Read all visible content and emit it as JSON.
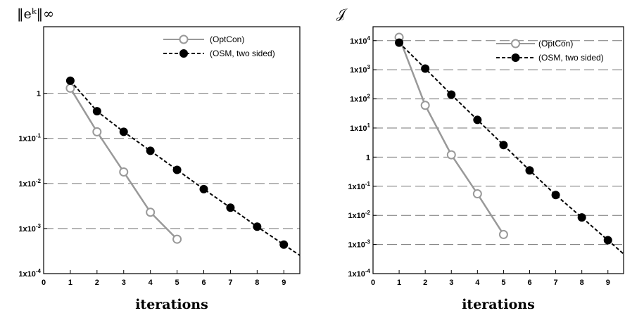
{
  "chart_data": [
    {
      "type": "line",
      "ylabel": "‖eᵏ‖∞",
      "xlabel": "iterations",
      "yscale": "log",
      "xlim": [
        0,
        9.6
      ],
      "ylim": [
        0.0001,
        30
      ],
      "x_ticks": [
        "0",
        "1",
        "2",
        "3",
        "4",
        "5",
        "6",
        "7",
        "8",
        "9"
      ],
      "y_ticks": [
        {
          "value": 1,
          "base": "1",
          "exp": ""
        },
        {
          "value": 0.1,
          "base": "1x10",
          "exp": "-1"
        },
        {
          "value": 0.01,
          "base": "1x10",
          "exp": "-2"
        },
        {
          "value": 0.001,
          "base": "1x10",
          "exp": "-3"
        },
        {
          "value": 0.0001,
          "base": "1x10",
          "exp": "-4"
        }
      ],
      "grid": "horizontal dashed",
      "legend_position": "top-right",
      "series": [
        {
          "name": "(OptCon)",
          "style": "solid",
          "marker": "open-circle",
          "color": "#999999",
          "x": [
            1,
            2,
            3,
            4,
            5
          ],
          "y": [
            1.3,
            0.14,
            0.018,
            0.0023,
            0.00058
          ]
        },
        {
          "name": "(OSM, two sided)",
          "style": "dashed",
          "marker": "filled-circle",
          "color": "#000000",
          "x": [
            1,
            2,
            3,
            4,
            5,
            6,
            7,
            8,
            9
          ],
          "y": [
            1.9,
            0.4,
            0.14,
            0.053,
            0.02,
            0.0075,
            0.0029,
            0.0011,
            0.00044
          ],
          "line_extends_to_x": 9.6
        }
      ]
    },
    {
      "type": "line",
      "ylabel": "𝒥",
      "xlabel": "iterations",
      "yscale": "log",
      "xlim": [
        0,
        9.6
      ],
      "ylim": [
        0.0001,
        30000
      ],
      "x_ticks": [
        "0",
        "1",
        "2",
        "3",
        "4",
        "5",
        "6",
        "7",
        "8",
        "9"
      ],
      "y_ticks": [
        {
          "value": 10000,
          "base": "1x10",
          "exp": "4"
        },
        {
          "value": 1000,
          "base": "1x10",
          "exp": "3"
        },
        {
          "value": 100,
          "base": "1x10",
          "exp": "2"
        },
        {
          "value": 10,
          "base": "1x10",
          "exp": "1"
        },
        {
          "value": 1,
          "base": "1",
          "exp": ""
        },
        {
          "value": 0.1,
          "base": "1x10",
          "exp": "-1"
        },
        {
          "value": 0.01,
          "base": "1x10",
          "exp": "-2"
        },
        {
          "value": 0.001,
          "base": "1x10",
          "exp": "-3"
        },
        {
          "value": 0.0001,
          "base": "1x10",
          "exp": "-4"
        }
      ],
      "grid": "horizontal dashed",
      "legend_position": "top-right",
      "series": [
        {
          "name": "(OptCon)",
          "style": "solid",
          "marker": "open-circle",
          "color": "#999999",
          "x": [
            1,
            2,
            3,
            4,
            5
          ],
          "y": [
            13000,
            60,
            1.2,
            0.055,
            0.0022
          ]
        },
        {
          "name": "(OSM, two sided)",
          "style": "dashed",
          "marker": "filled-circle",
          "color": "#000000",
          "x": [
            1,
            2,
            3,
            4,
            5,
            6,
            7,
            8,
            9
          ],
          "y": [
            8500,
            1100,
            140,
            19,
            2.6,
            0.35,
            0.05,
            0.0085,
            0.0014
          ],
          "line_extends_to_x": 9.6
        }
      ]
    }
  ]
}
